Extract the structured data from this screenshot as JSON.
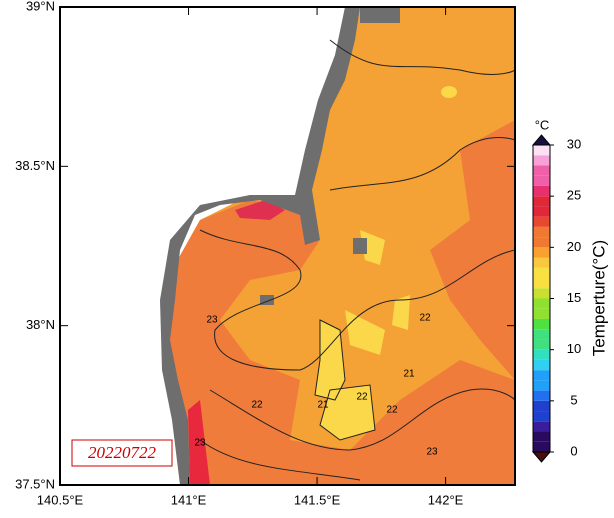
{
  "map": {
    "lon_range": [
      140.5,
      142.27
    ],
    "lat_range": [
      37.5,
      39
    ],
    "lon_ticks": [
      {
        "value": 140.5,
        "label": "140.5°E"
      },
      {
        "value": 141,
        "label": "141°E"
      },
      {
        "value": 141.5,
        "label": "141.5°E"
      },
      {
        "value": 142,
        "label": "142°E"
      }
    ],
    "lat_ticks": [
      {
        "value": 37.5,
        "label": "37.5°N"
      },
      {
        "value": 38,
        "label": "38°N"
      },
      {
        "value": 38.5,
        "label": "38.5°N"
      },
      {
        "value": 39,
        "label": "39°N"
      }
    ],
    "date_label": "20220722",
    "contour_labels": [
      23,
      22,
      21,
      22,
      22,
      21,
      22,
      23,
      23
    ]
  },
  "colorbar": {
    "unit": "°C",
    "label": "Temperture(°C)",
    "range": [
      0,
      30
    ],
    "ticks": [
      0,
      5,
      10,
      15,
      20,
      25,
      30
    ]
  }
}
